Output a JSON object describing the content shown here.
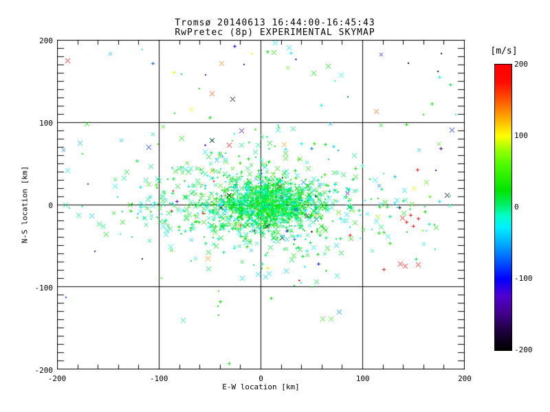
{
  "window": {
    "background": "#ffffff",
    "foreground": "#000000"
  },
  "title": {
    "line1": "Tromsø 20140613 16:44:00-16:45:43",
    "line2": "RwPretec (8p) EXPERIMENTAL SKYMAP"
  },
  "chart_data": {
    "type": "scatter",
    "title": "Tromsø 20140613 16:44:00-16:45:43",
    "subtitle": "RwPretec (8p) EXPERIMENTAL SKYMAP",
    "xlabel": "E-W location [km]",
    "ylabel": "N-S location [km]",
    "xlim": [
      -200,
      200
    ],
    "ylim": [
      -200,
      200
    ],
    "x_major_ticks": [
      -200,
      -100,
      0,
      100,
      200
    ],
    "y_major_ticks": [
      -200,
      -100,
      0,
      100,
      200
    ],
    "x_tick_labels": [
      "-200",
      "-100",
      "0",
      "100",
      "200"
    ],
    "y_tick_labels": [
      "200",
      "100",
      "0",
      "-100",
      "-200"
    ],
    "x_minor_step_km": 20,
    "y_minor_step_km": 10,
    "grid_line_values": [
      -100,
      0,
      100
    ],
    "grid_on": true,
    "marker_types": [
      "x",
      "plus",
      "dot"
    ],
    "value_unit": "m/s",
    "colorbar": {
      "label": "[m/s]",
      "range": [
        -200,
        200
      ],
      "tick_labels": [
        "200",
        "100",
        "0",
        "-100",
        "-200"
      ]
    },
    "colormap_stops": [
      {
        "t": 0.0,
        "c": "#000000"
      },
      {
        "t": 0.07,
        "c": "#1E0040"
      },
      {
        "t": 0.13,
        "c": "#44008C"
      },
      {
        "t": 0.19,
        "c": "#5000D0"
      },
      {
        "t": 0.25,
        "c": "#0000FF"
      },
      {
        "t": 0.32,
        "c": "#0064FF"
      },
      {
        "t": 0.38,
        "c": "#00B4FF"
      },
      {
        "t": 0.43,
        "c": "#00F0FF"
      },
      {
        "t": 0.47,
        "c": "#00FFC8"
      },
      {
        "t": 0.51,
        "c": "#00EE64"
      },
      {
        "t": 0.56,
        "c": "#00E400"
      },
      {
        "t": 0.65,
        "c": "#50FA00"
      },
      {
        "t": 0.7,
        "c": "#96FF00"
      },
      {
        "t": 0.75,
        "c": "#FFFF00"
      },
      {
        "t": 0.82,
        "c": "#FFA000"
      },
      {
        "t": 0.88,
        "c": "#FF5000"
      },
      {
        "t": 0.94,
        "c": "#FF0A00"
      },
      {
        "t": 1.0,
        "c": "#FF0000"
      }
    ],
    "seed": 20140613,
    "clusters": [
      {
        "n": 780,
        "cx": 9,
        "cy": 1,
        "sx": 21,
        "sy": 13,
        "vMean": 12,
        "vSd": 18,
        "pExtreme": 0.008
      },
      {
        "n": 520,
        "cx": -2,
        "cy": -3,
        "sx": 44,
        "sy": 27,
        "vMean": 8,
        "vSd": 22,
        "pExtreme": 0.012
      },
      {
        "n": 260,
        "cx": -8,
        "cy": 6,
        "sx": 70,
        "sy": 44,
        "vMean": 6,
        "vSd": 28,
        "pExtreme": 0.02
      },
      {
        "n": 130,
        "cx": 5,
        "cy": 0,
        "sx": 90,
        "sy": 11,
        "vMean": 4,
        "vSd": 24,
        "pExtreme": 0.015
      },
      {
        "n": 60,
        "uniform": true,
        "x0": -195,
        "x1": 195,
        "y0": -145,
        "y1": 195,
        "vMean": 0,
        "vSd": 90,
        "pExtreme": 0.05
      }
    ],
    "outliers_xyvm": [
      [
        -190,
        175,
        185,
        "x"
      ],
      [
        -106,
        172,
        -75,
        "p"
      ],
      [
        -171,
        98,
        25,
        "x"
      ],
      [
        -190,
        41,
        -30,
        "x"
      ],
      [
        -143,
        22,
        -25,
        "x"
      ],
      [
        -118,
        21,
        -25,
        "p"
      ],
      [
        -128,
        -8,
        25,
        "p"
      ],
      [
        -116,
        188,
        -25,
        "d"
      ],
      [
        -110,
        70,
        -90,
        "x"
      ],
      [
        -100,
        29,
        10,
        "x"
      ],
      [
        -106,
        -1,
        -30,
        "x"
      ],
      [
        -96,
        10,
        -25,
        "x"
      ],
      [
        -96,
        -26,
        -30,
        "x"
      ],
      [
        -93,
        -36,
        -30,
        "x"
      ],
      [
        -97,
        -12,
        -25,
        "d"
      ],
      [
        -86,
        16,
        185,
        "d"
      ],
      [
        -78,
        81,
        30,
        "x"
      ],
      [
        -60,
        141,
        20,
        "d"
      ],
      [
        -50,
        106,
        25,
        "p"
      ],
      [
        -48,
        135,
        150,
        "x"
      ],
      [
        -48,
        78,
        -200,
        "x"
      ],
      [
        -31,
        72,
        185,
        "x"
      ],
      [
        -28,
        128,
        -200,
        "x"
      ],
      [
        -31,
        11,
        -200,
        "x"
      ],
      [
        -39,
        -4,
        -200,
        "x"
      ],
      [
        6,
        -26,
        -200,
        "x"
      ],
      [
        18,
        22,
        190,
        "x"
      ],
      [
        -6,
        -32,
        190,
        "d"
      ],
      [
        1,
        37,
        -110,
        "d"
      ],
      [
        -46,
        28,
        185,
        "d"
      ],
      [
        26,
        -32,
        -105,
        "p"
      ],
      [
        45,
        -14,
        -160,
        "x"
      ],
      [
        37,
        -13,
        85,
        "x"
      ],
      [
        -43,
        54,
        -45,
        "x"
      ],
      [
        7,
        186,
        20,
        "p"
      ],
      [
        14,
        197,
        -25,
        "x"
      ],
      [
        28,
        191,
        -25,
        "x"
      ],
      [
        30,
        184,
        -30,
        "p"
      ],
      [
        52,
        160,
        20,
        "x"
      ],
      [
        66,
        168,
        25,
        "x"
      ],
      [
        79,
        157,
        -20,
        "x"
      ],
      [
        73,
        150,
        -25,
        "d"
      ],
      [
        145,
        172,
        -200,
        "d"
      ],
      [
        143,
        97,
        25,
        "p"
      ],
      [
        168,
        122,
        30,
        "p"
      ],
      [
        160,
        109,
        25,
        "d"
      ],
      [
        192,
        109,
        -25,
        "d"
      ],
      [
        112,
        30,
        -25,
        "x"
      ],
      [
        132,
        34,
        -45,
        "p"
      ],
      [
        154,
        42,
        185,
        "p"
      ],
      [
        151,
        20,
        105,
        "x"
      ],
      [
        166,
        10,
        60,
        "p"
      ],
      [
        176,
        4,
        -30,
        "p"
      ],
      [
        183,
        11,
        -200,
        "x"
      ],
      [
        98,
        -13,
        -25,
        "d"
      ],
      [
        117,
        -3,
        25,
        "p"
      ],
      [
        124,
        -3,
        30,
        "p"
      ],
      [
        139,
        -16,
        190,
        "x"
      ],
      [
        147,
        -13,
        185,
        "p"
      ],
      [
        155,
        -17,
        185,
        "p"
      ],
      [
        143,
        -21,
        190,
        "p"
      ],
      [
        150,
        -26,
        185,
        "p"
      ],
      [
        172,
        -28,
        30,
        "x"
      ],
      [
        116,
        -35,
        30,
        "p"
      ],
      [
        121,
        -34,
        35,
        "p"
      ],
      [
        98,
        -41,
        -25,
        "d"
      ],
      [
        127,
        -47,
        30,
        "p"
      ],
      [
        137,
        -72,
        190,
        "x"
      ],
      [
        142,
        -75,
        190,
        "x"
      ],
      [
        155,
        -73,
        185,
        "x"
      ],
      [
        121,
        -79,
        190,
        "p"
      ],
      [
        -3,
        -85,
        -35,
        "x"
      ],
      [
        5,
        -88,
        -40,
        "x"
      ],
      [
        8,
        -84,
        -35,
        "x"
      ],
      [
        25,
        -81,
        -40,
        "x"
      ],
      [
        -40,
        -118,
        25,
        "p"
      ],
      [
        -42,
        -124,
        25,
        "d"
      ],
      [
        -41,
        -135,
        25,
        "d"
      ],
      [
        10,
        -114,
        25,
        "p"
      ],
      [
        61,
        -139,
        45,
        "x"
      ],
      [
        69,
        -139,
        45,
        "x"
      ],
      [
        -31,
        -193,
        25,
        "p"
      ]
    ]
  }
}
